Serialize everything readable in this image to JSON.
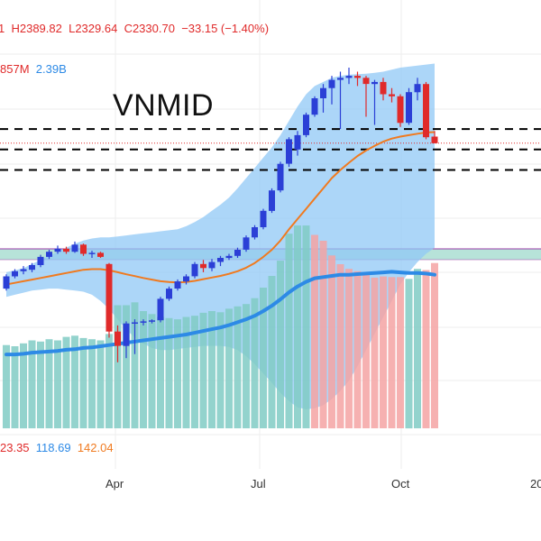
{
  "legend": {
    "ohlc_open_fragment": "1",
    "high": "H2389.82",
    "low": "L2329.64",
    "close": "C2330.70",
    "change": "−33.15 (−1.40%)",
    "vol_left": "857M",
    "vol_right": "2.39B",
    "ind_1": "23.35",
    "ind_2": "118.69",
    "ind_3": "142.04"
  },
  "title": "VNMID",
  "x_axis": {
    "labels": [
      "Apr",
      "Jul",
      "Oct",
      "20"
    ]
  },
  "colors": {
    "up": "#2b3fd6",
    "down": "#e02a2a",
    "vol_up": "#80cbc4",
    "vol_down": "#f4a3a3",
    "band": "#90c8f6",
    "ma": "#f07a1f",
    "vol_ma": "#2d8ae6",
    "close_line": "#e02a2a",
    "level_line": "#000000",
    "zone_fill": "#b7e3d9",
    "zone_border": "#9c3ea8",
    "legend_red": "#e02a2a",
    "legend_blue": "#2d8ae6",
    "legend_orange": "#f07a1f"
  },
  "chart_data": {
    "type": "candlestick",
    "title": "VNMID",
    "y_range": [
      1400,
      2700
    ],
    "ohlc_legend": {
      "high": 2389.82,
      "low": 2329.64,
      "close": 2330.7,
      "change": -33.15,
      "change_pct": -1.4
    },
    "horizontal_levels": [
      2400,
      2300,
      2200
    ],
    "zone": [
      1775,
      1830
    ],
    "candles": [
      [
        1620,
        1690,
        1610,
        1680
      ],
      [
        1680,
        1715,
        1670,
        1705
      ],
      [
        1705,
        1730,
        1690,
        1715
      ],
      [
        1712,
        1745,
        1700,
        1735
      ],
      [
        1735,
        1785,
        1725,
        1775
      ],
      [
        1775,
        1810,
        1765,
        1800
      ],
      [
        1800,
        1830,
        1790,
        1815
      ],
      [
        1815,
        1825,
        1790,
        1800
      ],
      [
        1800,
        1850,
        1795,
        1835
      ],
      [
        1835,
        1840,
        1780,
        1790
      ],
      [
        1790,
        1805,
        1770,
        1795
      ],
      [
        1795,
        1800,
        1770,
        1775
      ],
      [
        1740,
        1745,
        1380,
        1410
      ],
      [
        1410,
        1440,
        1260,
        1340
      ],
      [
        1340,
        1460,
        1280,
        1450
      ],
      [
        1450,
        1470,
        1300,
        1455
      ],
      [
        1455,
        1470,
        1440,
        1460
      ],
      [
        1460,
        1470,
        1450,
        1465
      ],
      [
        1465,
        1580,
        1455,
        1570
      ],
      [
        1570,
        1630,
        1560,
        1620
      ],
      [
        1620,
        1665,
        1610,
        1655
      ],
      [
        1655,
        1690,
        1640,
        1680
      ],
      [
        1680,
        1750,
        1670,
        1740
      ],
      [
        1740,
        1760,
        1700,
        1720
      ],
      [
        1720,
        1765,
        1705,
        1750
      ],
      [
        1750,
        1780,
        1730,
        1770
      ],
      [
        1770,
        1790,
        1760,
        1780
      ],
      [
        1780,
        1820,
        1770,
        1810
      ],
      [
        1810,
        1880,
        1800,
        1870
      ],
      [
        1870,
        1930,
        1860,
        1920
      ],
      [
        1920,
        2010,
        1910,
        2000
      ],
      [
        2000,
        2110,
        1990,
        2100
      ],
      [
        2100,
        2240,
        2090,
        2230
      ],
      [
        2230,
        2360,
        2215,
        2350
      ],
      [
        2300,
        2390,
        2270,
        2370
      ],
      [
        2370,
        2480,
        2360,
        2470
      ],
      [
        2470,
        2560,
        2460,
        2550
      ],
      [
        2550,
        2620,
        2480,
        2600
      ],
      [
        2600,
        2660,
        2520,
        2640
      ],
      [
        2640,
        2680,
        2400,
        2650
      ],
      [
        2650,
        2700,
        2620,
        2660
      ],
      [
        2660,
        2680,
        2610,
        2650
      ],
      [
        2650,
        2660,
        2460,
        2620
      ],
      [
        2620,
        2640,
        2420,
        2630
      ],
      [
        2630,
        2650,
        2540,
        2570
      ],
      [
        2570,
        2600,
        2530,
        2560
      ],
      [
        2560,
        2570,
        2410,
        2430
      ],
      [
        2430,
        2600,
        2420,
        2580
      ],
      [
        2580,
        2650,
        2540,
        2620
      ],
      [
        2620,
        2630,
        2350,
        2360
      ],
      [
        2363,
        2390,
        2330,
        2331
      ]
    ],
    "ma": [
      1640,
      1648,
      1656,
      1664,
      1672,
      1680,
      1688,
      1696,
      1704,
      1712,
      1715,
      1715,
      1710,
      1700,
      1690,
      1681,
      1672,
      1664,
      1656,
      1652,
      1650,
      1652,
      1658,
      1666,
      1674,
      1682,
      1692,
      1705,
      1722,
      1745,
      1775,
      1810,
      1855,
      1910,
      1960,
      2010,
      2060,
      2110,
      2160,
      2200,
      2235,
      2268,
      2295,
      2318,
      2338,
      2353,
      2363,
      2370,
      2377,
      2383,
      2385
    ],
    "band_upper": [
      1700,
      1710,
      1720,
      1740,
      1760,
      1780,
      1800,
      1820,
      1840,
      1855,
      1865,
      1870,
      1870,
      1875,
      1880,
      1885,
      1890,
      1895,
      1900,
      1905,
      1910,
      1925,
      1945,
      1970,
      2000,
      2030,
      2065,
      2110,
      2160,
      2210,
      2260,
      2310,
      2370,
      2440,
      2510,
      2570,
      2610,
      2630,
      2650,
      2660,
      2665,
      2668,
      2670,
      2675,
      2680,
      2690,
      2700,
      2705,
      2710,
      2715,
      2720
    ],
    "band_lower": [
      1580,
      1590,
      1600,
      1610,
      1615,
      1620,
      1620,
      1615,
      1610,
      1605,
      1590,
      1560,
      1520,
      1470,
      1420,
      1380,
      1350,
      1330,
      1320,
      1320,
      1325,
      1330,
      1335,
      1340,
      1340,
      1340,
      1335,
      1320,
      1290,
      1250,
      1205,
      1160,
      1110,
      1070,
      1040,
      1030,
      1035,
      1050,
      1080,
      1120,
      1170,
      1240,
      1320,
      1400,
      1480,
      1560,
      1640,
      1700,
      1750,
      1790,
      1820
    ],
    "volume": [
      142,
      140,
      145,
      150,
      148,
      152,
      150,
      156,
      158,
      154,
      152,
      150,
      161,
      210,
      210,
      215,
      200,
      195,
      190,
      188,
      186,
      190,
      192,
      197,
      200,
      198,
      204,
      208,
      212,
      222,
      240,
      260,
      286,
      332,
      346,
      346,
      330,
      320,
      295,
      280,
      272,
      268,
      262,
      257,
      259,
      258,
      258,
      255,
      272,
      270,
      282
    ],
    "volume_up": [
      1,
      1,
      1,
      1,
      1,
      1,
      1,
      1,
      1,
      1,
      1,
      1,
      1,
      1,
      1,
      1,
      1,
      1,
      1,
      1,
      1,
      1,
      1,
      1,
      1,
      1,
      1,
      1,
      1,
      1,
      1,
      1,
      1,
      1,
      1,
      1,
      0,
      0,
      0,
      0,
      0,
      0,
      0,
      0,
      0,
      0,
      0,
      1,
      1,
      0,
      0
    ],
    "volume_ma": [
      126,
      126,
      127,
      129,
      130,
      131,
      132,
      134,
      135,
      137,
      138,
      140,
      142,
      144,
      146,
      148,
      150,
      152,
      154,
      156,
      158,
      160,
      163,
      166,
      169,
      172,
      176,
      181,
      186,
      192,
      200,
      209,
      220,
      232,
      242,
      250,
      256,
      258,
      260,
      262,
      262,
      263,
      264,
      265,
      266,
      267,
      266,
      265,
      265,
      264,
      262
    ],
    "x_labels": [
      {
        "label": "Apr",
        "index": 14
      },
      {
        "label": "Jul",
        "index": 31
      },
      {
        "label": "Oct",
        "index": 49
      },
      {
        "label": "20",
        "index": 61
      }
    ]
  }
}
